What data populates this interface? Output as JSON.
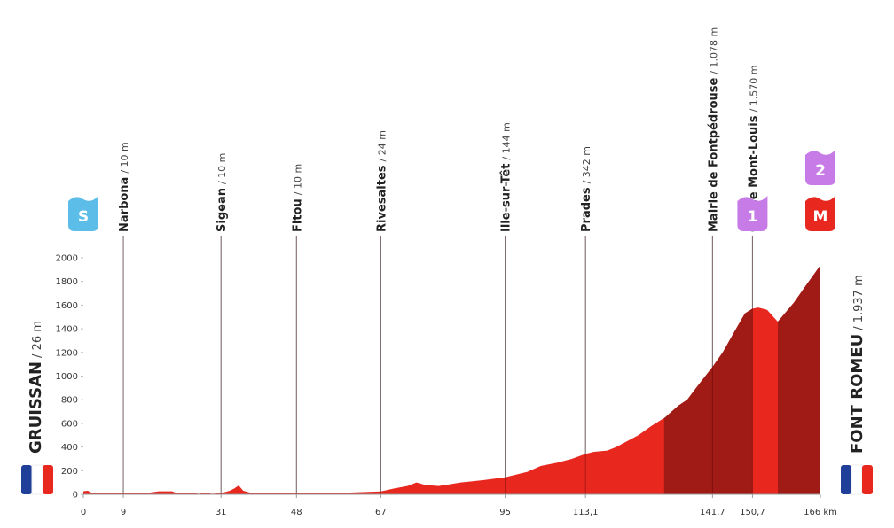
{
  "chart_data": {
    "type": "area",
    "color": "#e8271f",
    "x": [
      0,
      1,
      2,
      9,
      15,
      17,
      20,
      21,
      24,
      26,
      27,
      29,
      31,
      33,
      34,
      35,
      36,
      38,
      42,
      48,
      55,
      60,
      67,
      70,
      73,
      75,
      77,
      80,
      85,
      90,
      95,
      100,
      103,
      107,
      110,
      113.1,
      115,
      118,
      120,
      125,
      128,
      131,
      134,
      136,
      138,
      141.7,
      144,
      147,
      149,
      150.7,
      152,
      154,
      156.4,
      160,
      163,
      166
    ],
    "values": [
      26,
      30,
      10,
      10,
      15,
      25,
      25,
      10,
      15,
      5,
      15,
      5,
      10,
      30,
      50,
      75,
      30,
      10,
      15,
      10,
      10,
      15,
      24,
      50,
      70,
      100,
      80,
      70,
      100,
      120,
      144,
      190,
      240,
      270,
      300,
      342,
      360,
      370,
      400,
      500,
      580,
      650,
      750,
      800,
      900,
      1078,
      1200,
      1400,
      1530,
      1570,
      1580,
      1560,
      1460,
      1620,
      1780,
      1937
    ],
    "highlights": [
      {
        "from": 130.8,
        "to": 150.7,
        "color": "#a01b15"
      },
      {
        "from": 156.4,
        "to": 166,
        "color": "#a01b15"
      }
    ],
    "xlim": [
      0,
      166
    ],
    "ylim": [
      0,
      2000
    ],
    "yticks": [
      0,
      200,
      400,
      600,
      800,
      1000,
      1200,
      1400,
      1600,
      1800,
      2000
    ],
    "xticks": [
      0,
      9,
      31,
      48,
      67,
      95,
      {
        "value": 113.1,
        "label": "113,1"
      },
      {
        "value": 141.7,
        "label": "141,7"
      },
      {
        "value": 150.7,
        "label": "150,7"
      },
      {
        "value": 166,
        "label": "166 km"
      }
    ],
    "waypoints": [
      {
        "km": 9,
        "name": "Narbona",
        "detail": "/ 10 m"
      },
      {
        "km": 31,
        "name": "Sigean",
        "detail": "/ 10 m"
      },
      {
        "km": 48,
        "name": "Fitou",
        "detail": "/ 10 m"
      },
      {
        "km": 67,
        "name": "Rivesaltes",
        "detail": "/ 24 m"
      },
      {
        "km": 95,
        "name": "Ille-sur-Têt",
        "detail": "/ 144 m"
      },
      {
        "km": 113.1,
        "name": "Prades",
        "detail": "/ 342 m"
      },
      {
        "km": 141.7,
        "name": "Mairie de Fontpédrouse",
        "detail": "/ 1.078 m"
      },
      {
        "km": 150.7,
        "name": "Col de Mont-Louis",
        "detail": "/ 1.570 m"
      }
    ],
    "start": {
      "name": "GRUISSAN",
      "detail": "/ 26 m"
    },
    "finish": {
      "name": "FONT ROMEU",
      "detail": "/ 1.937 m"
    },
    "badges": [
      {
        "km": 0,
        "label": "S",
        "color": "#5bbde8"
      },
      {
        "km": 150.7,
        "label": "1",
        "color": "#c77be6"
      },
      {
        "km": 166,
        "label": "M",
        "color": "#e8271f"
      },
      {
        "km": 166,
        "label": "2",
        "color": "#c77be6"
      }
    ]
  }
}
